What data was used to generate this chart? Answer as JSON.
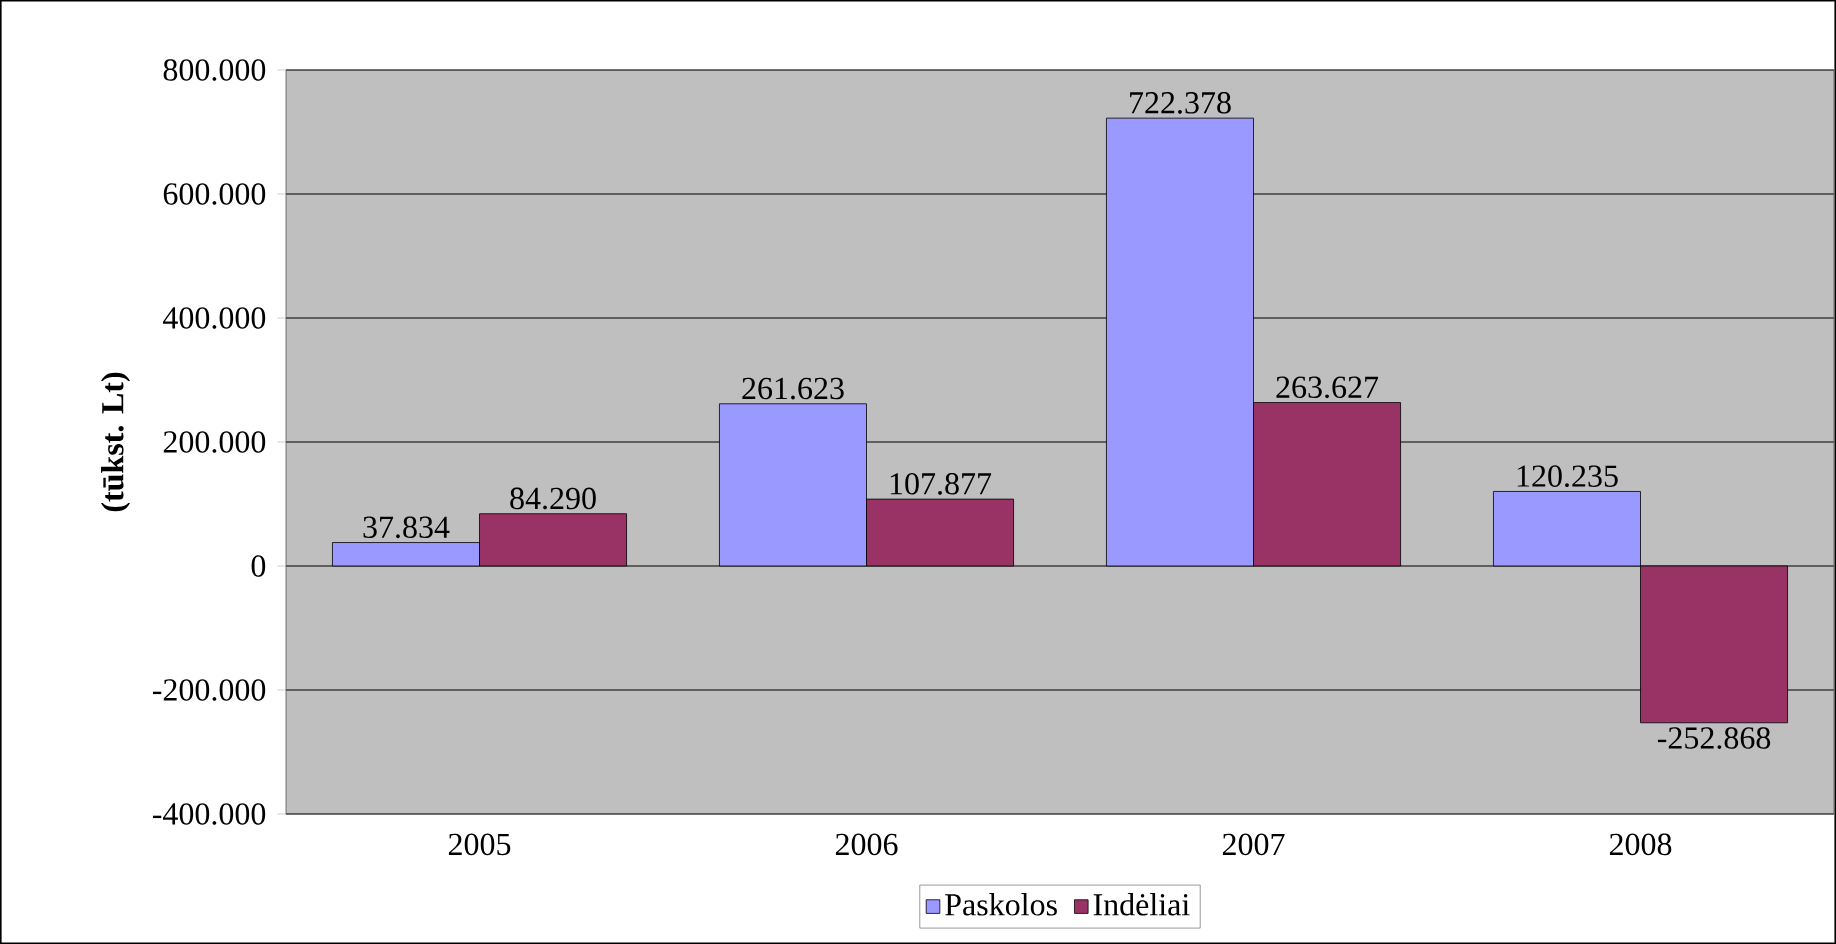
{
  "chart_data": {
    "type": "bar",
    "ylabel": "(tūkst. Lt)",
    "categories": [
      "2005",
      "2006",
      "2007",
      "2008"
    ],
    "series": [
      {
        "name": "Paskolos",
        "color": "#9999ff",
        "values": [
          37834,
          261623,
          722378,
          120235
        ],
        "value_labels": [
          "37.834",
          "261.623",
          "722.378",
          "120.235"
        ]
      },
      {
        "name": "Indėliai",
        "color": "#993366",
        "values": [
          84290,
          107877,
          263627,
          -252868
        ],
        "value_labels": [
          "84.290",
          "107.877",
          "263.627",
          "-252.868"
        ]
      }
    ],
    "ylim": [
      -400000,
      800000
    ],
    "yticks": [
      {
        "value": -400000,
        "label": "-400.000"
      },
      {
        "value": -200000,
        "label": "-200.000"
      },
      {
        "value": 0,
        "label": "0"
      },
      {
        "value": 200000,
        "label": "200.000"
      },
      {
        "value": 400000,
        "label": "400.000"
      },
      {
        "value": 600000,
        "label": "600.000"
      },
      {
        "value": 800000,
        "label": "800.000"
      }
    ],
    "grid": "y",
    "legend": "bottom"
  }
}
